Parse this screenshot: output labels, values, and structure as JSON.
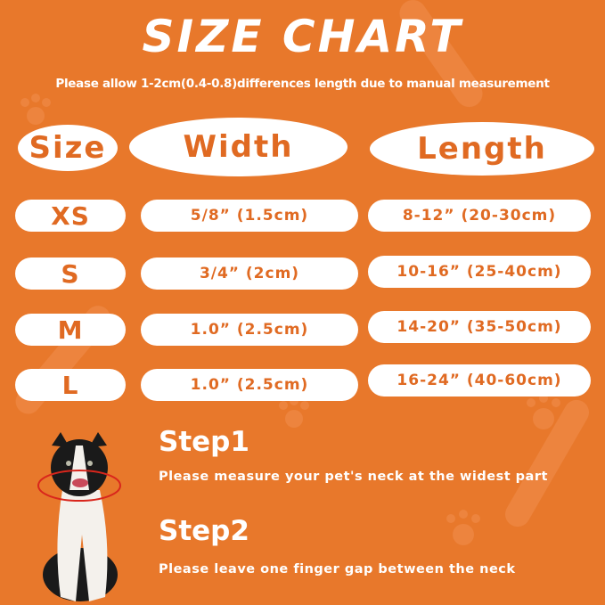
{
  "title": "SIZE CHART",
  "subtitle": "Please allow 1-2cm(0.4-0.8)differences length due to manual measurement",
  "headers": {
    "size": "Size",
    "width": "Width",
    "length": "Length"
  },
  "rows": [
    {
      "size": "XS",
      "width": "5/8” (1.5cm)",
      "length": "8-12” (20-30cm)"
    },
    {
      "size": "S",
      "width": "3/4” (2cm)",
      "length": "10-16” (25-40cm)"
    },
    {
      "size": "M",
      "width": "1.0” (2.5cm)",
      "length": "14-20” (35-50cm)"
    },
    {
      "size": "L",
      "width": "1.0” (2.5cm)",
      "length": "16-24” (40-60cm)"
    }
  ],
  "steps": [
    {
      "title": "Step1",
      "text": "Please measure your pet's neck at the widest part"
    },
    {
      "title": "Step2",
      "text": "Please leave one finger gap between the neck"
    }
  ],
  "colors": {
    "background": "#E8782B",
    "pill": "#FFFFFF",
    "pill_text": "#E06A22",
    "collar_ring": "#D9261C"
  },
  "icons": [
    "paw-print-icon",
    "bone-icon"
  ]
}
